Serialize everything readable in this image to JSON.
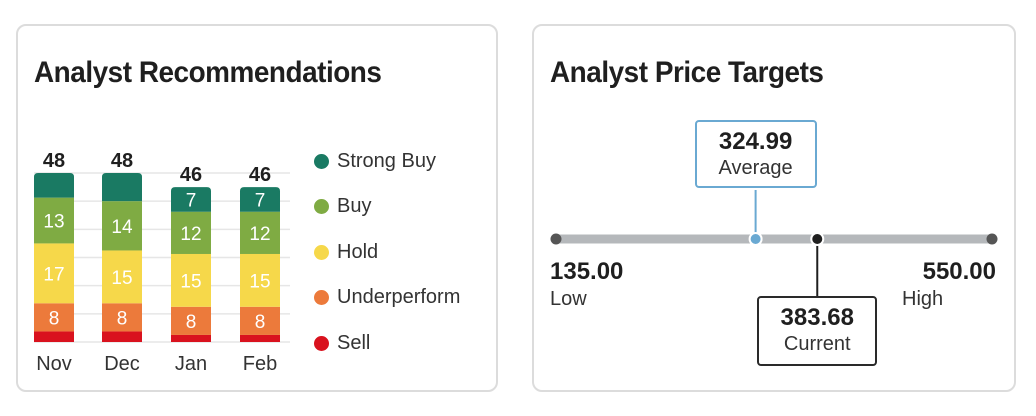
{
  "recommendations": {
    "title": "Analyst Recommendations",
    "legend": [
      {
        "label": "Strong Buy",
        "color": "#1a7a63"
      },
      {
        "label": "Buy",
        "color": "#7fab43"
      },
      {
        "label": "Hold",
        "color": "#f6d84a"
      },
      {
        "label": "Underperform",
        "color": "#ec7a3b"
      },
      {
        "label": "Sell",
        "color": "#d9121e"
      }
    ]
  },
  "chart_data": {
    "type": "bar",
    "stacked": true,
    "categories": [
      "Nov",
      "Dec",
      "Jan",
      "Feb"
    ],
    "totals": [
      "48",
      "48",
      "46",
      "46"
    ],
    "series": [
      {
        "name": "Sell",
        "values": [
          3,
          3,
          2,
          2
        ],
        "labels": [
          "",
          "",
          "",
          ""
        ],
        "color": "#d9121e"
      },
      {
        "name": "Underperform",
        "values": [
          8,
          8,
          8,
          8
        ],
        "labels": [
          "8",
          "8",
          "8",
          "8"
        ],
        "color": "#ec7a3b"
      },
      {
        "name": "Hold",
        "values": [
          17,
          15,
          15,
          15
        ],
        "labels": [
          "17",
          "15",
          "15",
          "15"
        ],
        "color": "#f6d84a"
      },
      {
        "name": "Buy",
        "values": [
          13,
          14,
          12,
          12
        ],
        "labels": [
          "13",
          "14",
          "12",
          "12"
        ],
        "color": "#7fab43"
      },
      {
        "name": "Strong Buy",
        "values": [
          7,
          8,
          7,
          7
        ],
        "labels": [
          "",
          "",
          "7",
          "7"
        ],
        "color": "#1a7a63"
      }
    ],
    "ylim": [
      0,
      48
    ],
    "grid": true,
    "legend_position": "right"
  },
  "price_targets": {
    "title": "Analyst Price Targets",
    "low": {
      "value": "135.00",
      "label": "Low",
      "num": 135.0
    },
    "high": {
      "value": "550.00",
      "label": "High",
      "num": 550.0
    },
    "average": {
      "value": "324.99",
      "label": "Average",
      "num": 324.99
    },
    "current": {
      "value": "383.68",
      "label": "Current",
      "num": 383.68
    },
    "colors": {
      "track": "#b5b8bb",
      "average": "#6aa9d2",
      "current": "#1f1f1f"
    }
  }
}
